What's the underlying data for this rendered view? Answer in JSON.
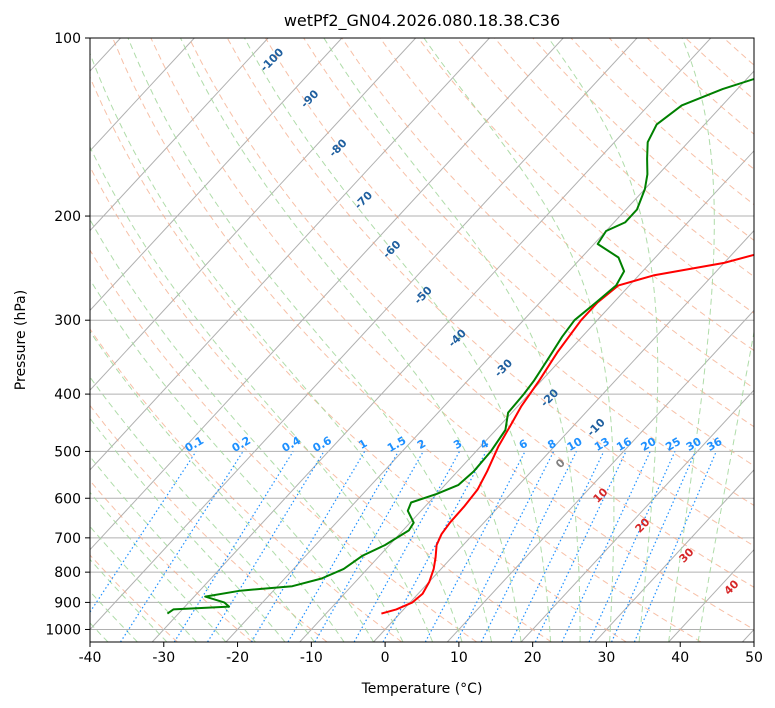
{
  "chart_data": {
    "type": "line",
    "title": "wetPf2_GN04.2026.080.18.38.C36",
    "xlabel": "Temperature (°C)",
    "ylabel": "Pressure (hPa)",
    "xlim": [
      -40,
      50
    ],
    "ylim": [
      1050,
      100
    ],
    "x_ticks": [
      -40,
      -30,
      -20,
      -10,
      0,
      10,
      20,
      30,
      40,
      50
    ],
    "y_ticks": [
      100,
      200,
      300,
      400,
      500,
      600,
      700,
      800,
      900,
      1000
    ],
    "grid": true,
    "skew_per_km": 4.6,
    "series": [
      {
        "name": "Temperature",
        "color": "#ff0000",
        "points": [
          [
            -2.5,
            940
          ],
          [
            -1,
            925
          ],
          [
            0.3,
            900
          ],
          [
            0.6,
            870
          ],
          [
            0,
            830
          ],
          [
            -1,
            790
          ],
          [
            -2.2,
            755
          ],
          [
            -3.6,
            720
          ],
          [
            -4.3,
            690
          ],
          [
            -4.6,
            660
          ],
          [
            -4.7,
            620
          ],
          [
            -5,
            580
          ],
          [
            -6,
            540
          ],
          [
            -7.6,
            490
          ],
          [
            -8.5,
            455
          ],
          [
            -9.5,
            420
          ],
          [
            -10.3,
            380
          ],
          [
            -11.4,
            340
          ],
          [
            -12.2,
            300
          ],
          [
            -12.2,
            280
          ],
          [
            -11.5,
            262
          ],
          [
            -8,
            252
          ],
          [
            0,
            240
          ],
          [
            5,
            228
          ],
          [
            8,
            210
          ],
          [
            10,
            190
          ],
          [
            12,
            170
          ],
          [
            14,
            150
          ],
          [
            16,
            130
          ],
          [
            17.6,
            115
          ],
          [
            19.3,
            100
          ]
        ]
      },
      {
        "name": "Dewpoint",
        "color": "#008000",
        "points": [
          [
            -31.5,
            940
          ],
          [
            -31.2,
            925
          ],
          [
            -24,
            915
          ],
          [
            -25.2,
            900
          ],
          [
            -28.5,
            880
          ],
          [
            -24.5,
            860
          ],
          [
            -18,
            845
          ],
          [
            -15,
            820
          ],
          [
            -13.2,
            790
          ],
          [
            -12.3,
            750
          ],
          [
            -10.6,
            720
          ],
          [
            -9.2,
            680
          ],
          [
            -9.5,
            660
          ],
          [
            -11.8,
            630
          ],
          [
            -12.4,
            610
          ],
          [
            -10,
            590
          ],
          [
            -8.2,
            570
          ],
          [
            -7.8,
            540
          ],
          [
            -8,
            500
          ],
          [
            -8.7,
            460
          ],
          [
            -10.5,
            430
          ],
          [
            -10.7,
            400
          ],
          [
            -11,
            380
          ],
          [
            -11.8,
            350
          ],
          [
            -12.7,
            320
          ],
          [
            -13.1,
            300
          ],
          [
            -12.4,
            280
          ],
          [
            -11.8,
            262
          ],
          [
            -12.5,
            248
          ],
          [
            -15,
            235
          ],
          [
            -19.5,
            223
          ],
          [
            -20,
            212
          ],
          [
            -18.5,
            205
          ],
          [
            -18.5,
            195
          ],
          [
            -20,
            180
          ],
          [
            -21.5,
            170
          ],
          [
            -23.5,
            160
          ],
          [
            -25.5,
            150
          ],
          [
            -26.5,
            140
          ],
          [
            -25.5,
            130
          ],
          [
            -22,
            122
          ],
          [
            -17.5,
            115
          ],
          [
            -10.5,
            100
          ]
        ]
      }
    ],
    "dry_adiabat_labels": [
      "-100",
      "-90",
      "-80",
      "-70",
      "-60",
      "-50",
      "-40",
      "-30",
      "-20",
      "-10"
    ],
    "moist_adiabat_labels": [
      "0",
      "10",
      "20",
      "30",
      "40"
    ],
    "mixing_ratio_labels": [
      "0.1",
      "0.2",
      "0.4",
      "0.6",
      "1",
      "1.5",
      "2",
      "3",
      "4",
      "6",
      "8",
      "10",
      "13",
      "16",
      "20",
      "25",
      "30",
      "36"
    ],
    "colors": {
      "temperature": "#ff0000",
      "dewpoint": "#008000",
      "grid": "#b0b0b0",
      "dry_adiabat": "#f4a582",
      "moist_adiabat": "#a6d8a0",
      "mixing_ratio": "#1e90ff",
      "dry_adiabat_label": "#1f5f9f",
      "moist_adiabat_label": "#d62728",
      "zero_moist_label": "#808080"
    }
  }
}
